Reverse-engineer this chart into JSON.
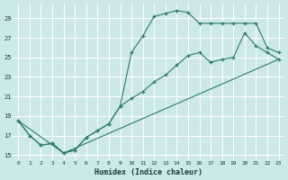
{
  "xlabel": "Humidex (Indice chaleur)",
  "bg_color": "#cce8e8",
  "grid_color": "#ffffff",
  "line_color": "#2d7a6e",
  "xlim": [
    -0.5,
    23.5
  ],
  "ylim": [
    14.5,
    30.5
  ],
  "yticks": [
    15,
    17,
    19,
    21,
    23,
    25,
    27,
    29
  ],
  "xticks": [
    0,
    1,
    2,
    3,
    4,
    5,
    6,
    7,
    8,
    9,
    10,
    11,
    12,
    13,
    14,
    15,
    16,
    17,
    18,
    19,
    20,
    21,
    22,
    23
  ],
  "curve1_x": [
    0,
    1,
    2,
    3,
    4,
    5,
    6,
    7,
    8,
    9,
    10,
    11,
    12,
    13,
    14,
    15,
    16,
    17,
    18,
    19,
    20,
    21,
    22,
    23
  ],
  "curve1_y": [
    18.5,
    17.0,
    16.0,
    16.2,
    15.2,
    15.5,
    16.8,
    17.5,
    18.2,
    20.0,
    25.5,
    27.2,
    29.2,
    29.5,
    29.8,
    29.6,
    28.5,
    28.5,
    28.5,
    28.5,
    28.5,
    28.5,
    26.0,
    25.5
  ],
  "curve2_x": [
    0,
    1,
    2,
    3,
    4,
    5,
    6,
    7,
    8,
    9,
    10,
    11,
    12,
    13,
    14,
    15,
    16,
    17,
    18,
    19,
    20,
    21,
    22,
    23
  ],
  "curve2_y": [
    18.5,
    17.0,
    16.0,
    16.2,
    15.2,
    15.5,
    16.8,
    17.5,
    18.2,
    20.0,
    20.8,
    21.5,
    22.5,
    23.2,
    24.2,
    25.2,
    25.5,
    24.5,
    24.8,
    25.0,
    27.5,
    26.2,
    25.5,
    24.8
  ],
  "curve3_x": [
    0,
    4,
    23
  ],
  "curve3_y": [
    18.5,
    15.2,
    24.8
  ]
}
